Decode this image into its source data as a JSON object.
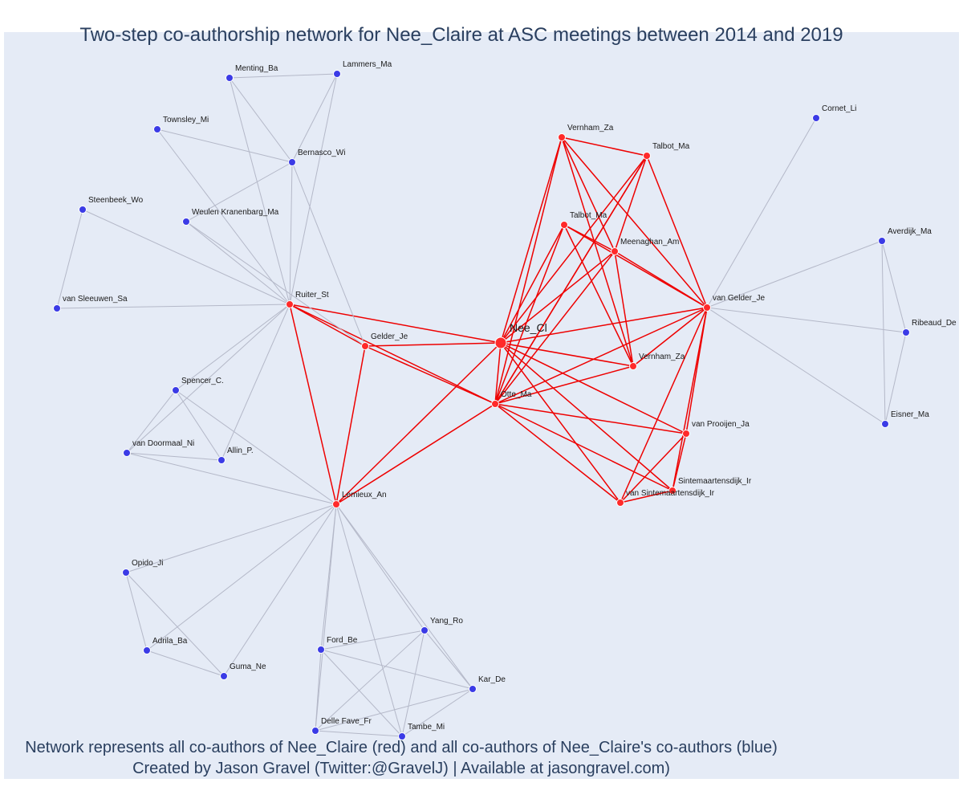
{
  "title": "Two-step co-authorship network for Nee_Claire at ASC meetings between 2014 and 2019",
  "footer": {
    "line1": "Network represents all co-authors of Nee_Claire (red) and all co-authors of Nee_Claire's co-authors (blue)",
    "line2": "Created by Jason Gravel (Twitter:@GravelJ) | Available at jasongravel.com)"
  },
  "colors": {
    "red_node": "#ff2a2a",
    "blue_node": "#3b3be6",
    "red_edge": "#ee0000",
    "grey_edge": "#b4b8c8",
    "background": "#e5ebf6",
    "text": "#2a3f5f"
  },
  "nodes": [
    {
      "id": "nee",
      "label": "Nee_Cl",
      "group": "red",
      "focal": true
    },
    {
      "id": "otte",
      "label": "Otte_Ma",
      "group": "red"
    },
    {
      "id": "ruiter",
      "label": "Ruiter_St",
      "group": "red"
    },
    {
      "id": "gelder",
      "label": "Gelder_Je",
      "group": "red"
    },
    {
      "id": "lemieux",
      "label": "Lemieux_An",
      "group": "red"
    },
    {
      "id": "vgelder",
      "label": "van Gelder_Je",
      "group": "red"
    },
    {
      "id": "vernham1",
      "label": "Vernham_Za",
      "group": "red"
    },
    {
      "id": "talbot1",
      "label": "Talbot_Ma",
      "group": "red"
    },
    {
      "id": "talbot2",
      "label": "Talbot_Ma",
      "group": "red"
    },
    {
      "id": "meenaghan",
      "label": "Meenaghan_Am",
      "group": "red"
    },
    {
      "id": "vernham2",
      "label": "Vernham_Za",
      "group": "red"
    },
    {
      "id": "vprooijen",
      "label": "van Prooijen_Ja",
      "group": "red"
    },
    {
      "id": "sint1",
      "label": "Sintemaartensdijk_Ir",
      "group": "red"
    },
    {
      "id": "sint2",
      "label": "van Sintemaartensdijk_Ir",
      "group": "red"
    },
    {
      "id": "menting",
      "label": "Menting_Ba",
      "group": "blue"
    },
    {
      "id": "lammers",
      "label": "Lammers_Ma",
      "group": "blue"
    },
    {
      "id": "townsley",
      "label": "Townsley_Mi",
      "group": "blue"
    },
    {
      "id": "bernasco",
      "label": "Bernasco_Wi",
      "group": "blue"
    },
    {
      "id": "steenbeek",
      "label": "Steenbeek_Wo",
      "group": "blue"
    },
    {
      "id": "weulen",
      "label": "Weulen Kranenbarg_Ma",
      "group": "blue"
    },
    {
      "id": "vsleeuwen",
      "label": "van Sleeuwen_Sa",
      "group": "blue"
    },
    {
      "id": "spencer",
      "label": "Spencer_C.",
      "group": "blue"
    },
    {
      "id": "vdoormaal",
      "label": "van Doormaal_Ni",
      "group": "blue"
    },
    {
      "id": "allin",
      "label": "Allin_P.",
      "group": "blue"
    },
    {
      "id": "opido",
      "label": "Opido_Ji",
      "group": "blue"
    },
    {
      "id": "adrila",
      "label": "Adrila_Ba",
      "group": "blue"
    },
    {
      "id": "guma",
      "label": "Guma_Ne",
      "group": "blue"
    },
    {
      "id": "ford",
      "label": "Ford_Be",
      "group": "blue"
    },
    {
      "id": "yang",
      "label": "Yang_Ro",
      "group": "blue"
    },
    {
      "id": "kar",
      "label": "Kar_De",
      "group": "blue"
    },
    {
      "id": "delle",
      "label": "Delle Fave_Fr",
      "group": "blue"
    },
    {
      "id": "tambe",
      "label": "Tambe_Mi",
      "group": "blue"
    },
    {
      "id": "cornet",
      "label": "Cornet_Li",
      "group": "blue"
    },
    {
      "id": "averdijk",
      "label": "Averdijk_Ma",
      "group": "blue"
    },
    {
      "id": "ribeaud",
      "label": "Ribeaud_De",
      "group": "blue"
    },
    {
      "id": "eisner",
      "label": "Eisner_Ma",
      "group": "blue"
    }
  ],
  "edges": [
    [
      "nee",
      "otte",
      "red"
    ],
    [
      "nee",
      "ruiter",
      "red"
    ],
    [
      "nee",
      "gelder",
      "red"
    ],
    [
      "nee",
      "lemieux",
      "red"
    ],
    [
      "nee",
      "vgelder",
      "red"
    ],
    [
      "nee",
      "vernham1",
      "red"
    ],
    [
      "nee",
      "talbot1",
      "red"
    ],
    [
      "nee",
      "talbot2",
      "red"
    ],
    [
      "nee",
      "meenaghan",
      "red"
    ],
    [
      "nee",
      "vernham2",
      "red"
    ],
    [
      "nee",
      "vprooijen",
      "red"
    ],
    [
      "nee",
      "sint1",
      "red"
    ],
    [
      "nee",
      "sint2",
      "red"
    ],
    [
      "ruiter",
      "gelder",
      "red"
    ],
    [
      "ruiter",
      "otte",
      "red"
    ],
    [
      "ruiter",
      "lemieux",
      "red"
    ],
    [
      "gelder",
      "otte",
      "red"
    ],
    [
      "gelder",
      "lemieux",
      "red"
    ],
    [
      "lemieux",
      "otte",
      "red"
    ],
    [
      "otte",
      "vgelder",
      "red"
    ],
    [
      "otte",
      "vernham1",
      "red"
    ],
    [
      "otte",
      "talbot1",
      "red"
    ],
    [
      "otte",
      "talbot2",
      "red"
    ],
    [
      "otte",
      "meenaghan",
      "red"
    ],
    [
      "otte",
      "vernham2",
      "red"
    ],
    [
      "otte",
      "vprooijen",
      "red"
    ],
    [
      "otte",
      "sint1",
      "red"
    ],
    [
      "otte",
      "sint2",
      "red"
    ],
    [
      "vgelder",
      "vernham1",
      "red"
    ],
    [
      "vgelder",
      "talbot1",
      "red"
    ],
    [
      "vgelder",
      "talbot2",
      "red"
    ],
    [
      "vgelder",
      "meenaghan",
      "red"
    ],
    [
      "vgelder",
      "vernham2",
      "red"
    ],
    [
      "vgelder",
      "vprooijen",
      "red"
    ],
    [
      "vgelder",
      "sint1",
      "red"
    ],
    [
      "vgelder",
      "sint2",
      "red"
    ],
    [
      "vernham1",
      "talbot1",
      "red"
    ],
    [
      "vernham1",
      "meenaghan",
      "red"
    ],
    [
      "vernham1",
      "vernham2",
      "red"
    ],
    [
      "talbot1",
      "meenaghan",
      "red"
    ],
    [
      "talbot1",
      "otte",
      "red"
    ],
    [
      "talbot2",
      "meenaghan",
      "red"
    ],
    [
      "talbot2",
      "vernham2",
      "red"
    ],
    [
      "meenaghan",
      "vernham2",
      "red"
    ],
    [
      "vprooijen",
      "sint1",
      "red"
    ],
    [
      "vprooijen",
      "sint2",
      "red"
    ],
    [
      "sint1",
      "sint2",
      "red"
    ],
    [
      "ruiter",
      "menting",
      "grey"
    ],
    [
      "ruiter",
      "lammers",
      "grey"
    ],
    [
      "ruiter",
      "townsley",
      "grey"
    ],
    [
      "ruiter",
      "bernasco",
      "grey"
    ],
    [
      "ruiter",
      "steenbeek",
      "grey"
    ],
    [
      "ruiter",
      "weulen",
      "grey"
    ],
    [
      "ruiter",
      "vsleeuwen",
      "grey"
    ],
    [
      "ruiter",
      "spencer",
      "grey"
    ],
    [
      "ruiter",
      "vdoormaal",
      "grey"
    ],
    [
      "ruiter",
      "allin",
      "grey"
    ],
    [
      "menting",
      "lammers",
      "grey"
    ],
    [
      "menting",
      "bernasco",
      "grey"
    ],
    [
      "lammers",
      "bernasco",
      "grey"
    ],
    [
      "townsley",
      "bernasco",
      "grey"
    ],
    [
      "bernasco",
      "weulen",
      "grey"
    ],
    [
      "bernasco",
      "gelder",
      "grey"
    ],
    [
      "steenbeek",
      "vsleeuwen",
      "grey"
    ],
    [
      "weulen",
      "gelder",
      "grey"
    ],
    [
      "spencer",
      "vdoormaal",
      "grey"
    ],
    [
      "spencer",
      "allin",
      "grey"
    ],
    [
      "spencer",
      "lemieux",
      "grey"
    ],
    [
      "vdoormaal",
      "allin",
      "grey"
    ],
    [
      "vdoormaal",
      "lemieux",
      "grey"
    ],
    [
      "lemieux",
      "opido",
      "grey"
    ],
    [
      "lemieux",
      "adrila",
      "grey"
    ],
    [
      "lemieux",
      "guma",
      "grey"
    ],
    [
      "lemieux",
      "ford",
      "grey"
    ],
    [
      "lemieux",
      "yang",
      "grey"
    ],
    [
      "lemieux",
      "kar",
      "grey"
    ],
    [
      "lemieux",
      "delle",
      "grey"
    ],
    [
      "lemieux",
      "tambe",
      "grey"
    ],
    [
      "opido",
      "adrila",
      "grey"
    ],
    [
      "opido",
      "guma",
      "grey"
    ],
    [
      "adrila",
      "guma",
      "grey"
    ],
    [
      "ford",
      "yang",
      "grey"
    ],
    [
      "ford",
      "kar",
      "grey"
    ],
    [
      "ford",
      "delle",
      "grey"
    ],
    [
      "ford",
      "tambe",
      "grey"
    ],
    [
      "yang",
      "kar",
      "grey"
    ],
    [
      "yang",
      "delle",
      "grey"
    ],
    [
      "yang",
      "tambe",
      "grey"
    ],
    [
      "kar",
      "tambe",
      "grey"
    ],
    [
      "kar",
      "delle",
      "grey"
    ],
    [
      "delle",
      "tambe",
      "grey"
    ],
    [
      "vgelder",
      "cornet",
      "grey"
    ],
    [
      "vgelder",
      "averdijk",
      "grey"
    ],
    [
      "vgelder",
      "ribeaud",
      "grey"
    ],
    [
      "vgelder",
      "eisner",
      "grey"
    ],
    [
      "averdijk",
      "ribeaud",
      "grey"
    ],
    [
      "averdijk",
      "eisner",
      "grey"
    ],
    [
      "ribeaud",
      "eisner",
      "grey"
    ]
  ]
}
